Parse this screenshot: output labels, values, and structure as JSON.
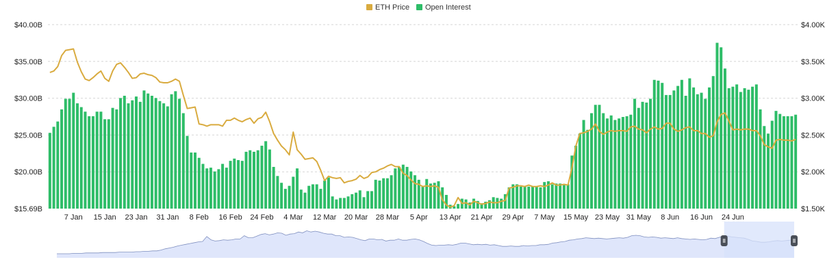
{
  "legend": {
    "price_label": "ETH Price",
    "oi_label": "Open Interest"
  },
  "colors": {
    "price": "#d9ab3f",
    "oi": "#2ebd68",
    "navigator_fill": "#dfe6fb",
    "navigator_line": "#7f8fbf",
    "navigator_selection": "#d7e1fb",
    "grid": "#d6d6d6"
  },
  "chart_data": {
    "type": "bar",
    "left_axis": {
      "ticks": [
        "$40.00B",
        "$35.00B",
        "$30.00B",
        "$25.00B",
        "$20.00B",
        "$15.69B"
      ],
      "ylim": [
        15.69,
        40.0
      ]
    },
    "right_axis": {
      "ticks": [
        "$4.00K",
        "$3.50K",
        "$3.00K",
        "$2.50K",
        "$2.00K",
        "$1.50K"
      ],
      "ylim": [
        1.5,
        4.0
      ]
    },
    "x_ticks": [
      "7 Jan",
      "15 Jan",
      "23 Jan",
      "31 Jan",
      "8 Feb",
      "16 Feb",
      "24 Feb",
      "4 Mar",
      "12 Mar",
      "20 Mar",
      "28 Mar",
      "5 Apr",
      "13 Apr",
      "21 Apr",
      "29 Apr",
      "7 May",
      "15 May",
      "23 May",
      "31 May",
      "8 Jun",
      "16 Jun",
      "24 Jun"
    ],
    "x_tick_index": [
      6,
      14,
      22,
      30,
      38,
      46,
      54,
      62,
      70,
      78,
      86,
      94,
      102,
      110,
      118,
      126,
      134,
      142,
      150,
      158,
      166,
      174
    ],
    "series": [
      {
        "name": "Open Interest",
        "unit": "$B",
        "values": [
          25.7,
          26.5,
          27.2,
          28.8,
          30.2,
          30.2,
          31.0,
          29.6,
          29.1,
          28.5,
          27.9,
          27.9,
          28.5,
          28.5,
          27.5,
          27.5,
          29.0,
          28.8,
          30.3,
          30.6,
          29.6,
          30.0,
          30.5,
          29.8,
          31.3,
          30.9,
          30.6,
          30.3,
          29.9,
          29.6,
          29.2,
          30.8,
          31.2,
          30.2,
          28.3,
          25.3,
          23.1,
          23.1,
          22.4,
          21.6,
          21.0,
          21.1,
          20.6,
          20.9,
          21.6,
          21.1,
          22.0,
          22.3,
          22.1,
          22.0,
          23.2,
          23.4,
          23.2,
          23.4,
          24.0,
          24.6,
          23.5,
          21.2,
          20.0,
          19.1,
          18.3,
          18.7,
          19.9,
          21.0,
          18.2,
          17.8,
          18.7,
          18.9,
          18.9,
          18.3,
          19.4,
          19.8,
          17.3,
          16.9,
          17.1,
          17.1,
          17.3,
          17.6,
          17.8,
          18.1,
          17.2,
          18.0,
          18.0,
          19.5,
          19.4,
          19.7,
          19.7,
          20.1,
          21.0,
          21.2,
          21.5,
          21.2,
          20.6,
          20.1,
          19.5,
          18.6,
          19.6,
          19.0,
          19.1,
          19.3,
          18.5,
          17.5,
          16.2,
          16.0,
          16.3,
          17.0,
          16.9,
          16.5,
          17.0,
          16.7,
          16.4,
          16.6,
          16.8,
          17.2,
          17.1,
          17.0,
          17.6,
          18.5,
          18.9,
          18.9,
          18.6,
          18.7,
          18.6,
          18.6,
          18.6,
          18.5,
          19.2,
          19.3,
          18.9,
          19.0,
          19.0,
          18.8,
          18.9,
          22.7,
          24.0,
          25.6,
          27.4,
          26.1,
          28.3,
          29.4,
          29.4,
          28.3,
          27.6,
          28.0,
          27.4,
          27.6,
          27.8,
          27.9,
          28.1,
          30.2,
          29.0,
          29.8,
          29.7,
          30.2,
          32.7,
          32.6,
          32.3,
          30.7,
          30.7,
          31.3,
          31.9,
          32.7,
          30.6,
          32.9,
          31.7,
          30.8,
          31.0,
          30.2,
          31.7,
          33.2,
          37.6,
          37.0,
          34.2,
          31.6,
          31.8,
          32.1,
          31.1,
          31.6,
          31.4,
          31.8,
          32.1,
          28.8,
          26.6,
          25.6,
          27.3,
          28.6,
          28.2,
          27.9,
          27.9,
          27.9,
          28.1
        ]
      },
      {
        "name": "ETH Price",
        "unit": "$K",
        "values": [
          3.35,
          3.37,
          3.43,
          3.58,
          3.65,
          3.66,
          3.67,
          3.49,
          3.36,
          3.26,
          3.24,
          3.28,
          3.33,
          3.37,
          3.27,
          3.23,
          3.37,
          3.46,
          3.48,
          3.42,
          3.35,
          3.27,
          3.28,
          3.33,
          3.34,
          3.32,
          3.31,
          3.28,
          3.22,
          3.21,
          3.21,
          3.23,
          3.26,
          3.23,
          3.04,
          2.86,
          2.87,
          2.88,
          2.65,
          2.64,
          2.62,
          2.64,
          2.64,
          2.64,
          2.62,
          2.7,
          2.7,
          2.73,
          2.7,
          2.68,
          2.71,
          2.73,
          2.66,
          2.72,
          2.74,
          2.81,
          2.68,
          2.52,
          2.43,
          2.35,
          2.3,
          2.23,
          2.54,
          2.3,
          2.24,
          2.17,
          2.18,
          2.19,
          2.14,
          2.02,
          1.88,
          1.94,
          1.92,
          1.91,
          1.92,
          1.85,
          1.87,
          1.88,
          1.9,
          1.95,
          1.91,
          1.93,
          1.99,
          2.0,
          2.03,
          2.05,
          2.08,
          2.1,
          2.07,
          2.07,
          1.98,
          1.95,
          1.89,
          1.84,
          1.83,
          1.8,
          1.81,
          1.8,
          1.81,
          1.79,
          1.62,
          1.55,
          1.52,
          1.54,
          1.65,
          1.57,
          1.58,
          1.55,
          1.6,
          1.58,
          1.56,
          1.57,
          1.59,
          1.58,
          1.58,
          1.6,
          1.61,
          1.78,
          1.79,
          1.81,
          1.81,
          1.8,
          1.82,
          1.8,
          1.8,
          1.81,
          1.8,
          1.82,
          1.85,
          1.82,
          1.82,
          1.83,
          1.82,
          2.05,
          2.35,
          2.52,
          2.53,
          2.55,
          2.58,
          2.65,
          2.55,
          2.51,
          2.54,
          2.56,
          2.55,
          2.56,
          2.56,
          2.55,
          2.61,
          2.62,
          2.58,
          2.57,
          2.53,
          2.58,
          2.61,
          2.58,
          2.59,
          2.66,
          2.66,
          2.58,
          2.55,
          2.57,
          2.6,
          2.61,
          2.56,
          2.56,
          2.52,
          2.52,
          2.47,
          2.49,
          2.68,
          2.78,
          2.8,
          2.69,
          2.57,
          2.58,
          2.57,
          2.58,
          2.58,
          2.56,
          2.56,
          2.49,
          2.37,
          2.34,
          2.32,
          2.43,
          2.44,
          2.43,
          2.43,
          2.42,
          2.44
        ]
      }
    ],
    "navigator": {
      "values": [
        16.0,
        16.0,
        16.0,
        16.0,
        16.1,
        16.1,
        16.1,
        16.2,
        16.2,
        16.2,
        16.2,
        16.3,
        16.3,
        16.3,
        16.3,
        16.4,
        16.4,
        16.4,
        16.4,
        16.5,
        16.5,
        16.6,
        16.6,
        16.7,
        16.7,
        16.9,
        17.2,
        17.4,
        17.6,
        17.9,
        18.1,
        18.3,
        18.5,
        18.7,
        18.9,
        19.0,
        20.2,
        19.4,
        19.1,
        19.2,
        19.4,
        19.3,
        19.4,
        19.6,
        19.6,
        20.4,
        19.9,
        19.9,
        20.3,
        20.7,
        20.9,
        20.6,
        20.8,
        21.1,
        21.0,
        20.5,
        20.8,
        20.9,
        21.3,
        21.1,
        21.6,
        21.3,
        21.5,
        21.3,
        21.0,
        20.8,
        20.8,
        20.4,
        20.4,
        20.0,
        20.1,
        20.0,
        19.7,
        19.4,
        19.2,
        19.6,
        19.6,
        19.4,
        19.5,
        19.1,
        19.3,
        19.3,
        19.6,
        19.3,
        19.3,
        19.5,
        19.6,
        19.4,
        19.0,
        18.5,
        18.1,
        18.0,
        18.1,
        18.1,
        18.2,
        18.1,
        18.3,
        18.6,
        18.6,
        18.4,
        18.2,
        18.3,
        18.2,
        18.3,
        18.1,
        18.2,
        18.0,
        17.8,
        17.8,
        17.9,
        17.8,
        17.8,
        18.0,
        17.9,
        18.0,
        18.0,
        18.2,
        18.2,
        18.3,
        18.6,
        18.7,
        18.9,
        19.0,
        19.3,
        19.4,
        19.6,
        19.7,
        19.9,
        19.8,
        19.7,
        19.8,
        19.7,
        19.6,
        19.7,
        19.8,
        19.9,
        19.8,
        20.0,
        20.4,
        20.5,
        20.4,
        20.1,
        20.0,
        20.1,
        20.0,
        19.8,
        19.9,
        19.8,
        19.7,
        19.9,
        19.7,
        19.6,
        19.5,
        19.6,
        19.5,
        19.4,
        19.5,
        19.8,
        19.7,
        20.0,
        20.3,
        20.3,
        20.1,
        20.0,
        19.9,
        19.8,
        19.5,
        19.1,
        19.0,
        18.8,
        18.8,
        18.9,
        19.1,
        19.2,
        19.1,
        19.2,
        19.3,
        19.3
      ],
      "selection_start": 0.905,
      "selection_end": 1.0
    }
  }
}
